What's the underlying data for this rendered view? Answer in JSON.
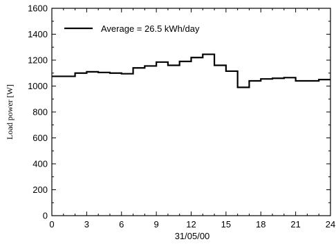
{
  "chart_data": {
    "type": "line",
    "subtype": "step",
    "xlabel": "31/05/00",
    "ylabel": "Load power [W]",
    "xlim": [
      0,
      24
    ],
    "ylim": [
      0,
      1600
    ],
    "x_ticks": [
      0,
      3,
      6,
      9,
      12,
      15,
      18,
      21,
      24
    ],
    "x_minor_step": 1,
    "y_ticks": [
      0,
      200,
      400,
      600,
      800,
      1000,
      1200,
      1400,
      1600
    ],
    "y_minor_step": 100,
    "grid": false,
    "legend_position": "top-left",
    "series": [
      {
        "name": "Average = 26.5 kWh/day",
        "color": "#000000",
        "x": [
          0,
          1,
          2,
          3,
          4,
          5,
          6,
          7,
          8,
          9,
          10,
          11,
          12,
          13,
          14,
          15,
          16,
          17,
          18,
          19,
          20,
          21,
          22,
          23
        ],
        "values": [
          1075,
          1075,
          1100,
          1110,
          1105,
          1100,
          1095,
          1140,
          1155,
          1185,
          1160,
          1190,
          1220,
          1245,
          1160,
          1115,
          990,
          1040,
          1055,
          1060,
          1065,
          1040,
          1040,
          1050
        ]
      }
    ]
  }
}
